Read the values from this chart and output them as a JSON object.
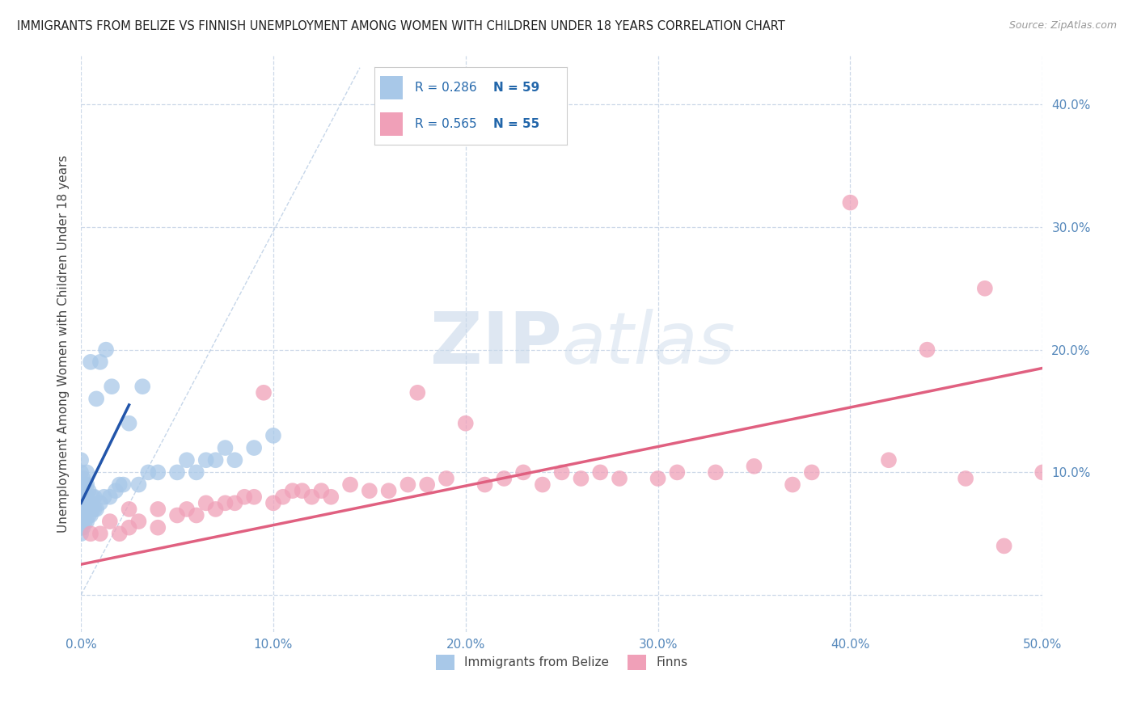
{
  "title": "IMMIGRANTS FROM BELIZE VS FINNISH UNEMPLOYMENT AMONG WOMEN WITH CHILDREN UNDER 18 YEARS CORRELATION CHART",
  "source": "Source: ZipAtlas.com",
  "ylabel": "Unemployment Among Women with Children Under 18 years",
  "xlim": [
    0.0,
    0.5
  ],
  "ylim": [
    -0.03,
    0.44
  ],
  "xticks": [
    0.0,
    0.1,
    0.2,
    0.3,
    0.4,
    0.5
  ],
  "yticks": [
    0.0,
    0.1,
    0.2,
    0.3,
    0.4
  ],
  "xtick_labels": [
    "0.0%",
    "10.0%",
    "20.0%",
    "30.0%",
    "40.0%",
    "50.0%"
  ],
  "ytick_labels": [
    "",
    "10.0%",
    "20.0%",
    "30.0%",
    "40.0%"
  ],
  "legend_label1": "Immigrants from Belize",
  "legend_label2": "Finns",
  "R1": 0.286,
  "N1": 59,
  "R2": 0.565,
  "N2": 55,
  "color_blue": "#a8c8e8",
  "color_pink": "#f0a0b8",
  "color_blue_line": "#2255aa",
  "color_pink_line": "#e06080",
  "color_diag": "#b8cce4",
  "watermark_zip": "ZIP",
  "watermark_atlas": "atlas",
  "blue_scatter_x": [
    0.0,
    0.0,
    0.0,
    0.0,
    0.0,
    0.0,
    0.0,
    0.0,
    0.0,
    0.0,
    0.001,
    0.001,
    0.001,
    0.001,
    0.001,
    0.002,
    0.002,
    0.002,
    0.002,
    0.003,
    0.003,
    0.003,
    0.003,
    0.003,
    0.004,
    0.004,
    0.004,
    0.005,
    0.005,
    0.005,
    0.006,
    0.006,
    0.007,
    0.007,
    0.008,
    0.008,
    0.01,
    0.01,
    0.012,
    0.013,
    0.015,
    0.016,
    0.018,
    0.02,
    0.022,
    0.025,
    0.03,
    0.032,
    0.035,
    0.04,
    0.05,
    0.055,
    0.06,
    0.065,
    0.07,
    0.075,
    0.08,
    0.09,
    0.1
  ],
  "blue_scatter_y": [
    0.05,
    0.055,
    0.06,
    0.065,
    0.07,
    0.075,
    0.08,
    0.09,
    0.1,
    0.11,
    0.055,
    0.065,
    0.075,
    0.085,
    0.095,
    0.06,
    0.07,
    0.08,
    0.09,
    0.06,
    0.07,
    0.08,
    0.09,
    0.1,
    0.065,
    0.075,
    0.085,
    0.065,
    0.075,
    0.19,
    0.07,
    0.08,
    0.07,
    0.08,
    0.07,
    0.16,
    0.075,
    0.19,
    0.08,
    0.2,
    0.08,
    0.17,
    0.085,
    0.09,
    0.09,
    0.14,
    0.09,
    0.17,
    0.1,
    0.1,
    0.1,
    0.11,
    0.1,
    0.11,
    0.11,
    0.12,
    0.11,
    0.12,
    0.13
  ],
  "pink_scatter_x": [
    0.005,
    0.01,
    0.015,
    0.02,
    0.025,
    0.025,
    0.03,
    0.04,
    0.04,
    0.05,
    0.055,
    0.06,
    0.065,
    0.07,
    0.075,
    0.08,
    0.085,
    0.09,
    0.095,
    0.1,
    0.105,
    0.11,
    0.115,
    0.12,
    0.125,
    0.13,
    0.14,
    0.15,
    0.16,
    0.17,
    0.175,
    0.18,
    0.19,
    0.2,
    0.21,
    0.22,
    0.23,
    0.24,
    0.25,
    0.26,
    0.27,
    0.28,
    0.3,
    0.31,
    0.33,
    0.35,
    0.37,
    0.38,
    0.4,
    0.42,
    0.44,
    0.46,
    0.47,
    0.48,
    0.5
  ],
  "pink_scatter_y": [
    0.05,
    0.05,
    0.06,
    0.05,
    0.055,
    0.07,
    0.06,
    0.055,
    0.07,
    0.065,
    0.07,
    0.065,
    0.075,
    0.07,
    0.075,
    0.075,
    0.08,
    0.08,
    0.165,
    0.075,
    0.08,
    0.085,
    0.085,
    0.08,
    0.085,
    0.08,
    0.09,
    0.085,
    0.085,
    0.09,
    0.165,
    0.09,
    0.095,
    0.14,
    0.09,
    0.095,
    0.1,
    0.09,
    0.1,
    0.095,
    0.1,
    0.095,
    0.095,
    0.1,
    0.1,
    0.105,
    0.09,
    0.1,
    0.32,
    0.11,
    0.2,
    0.095,
    0.25,
    0.04,
    0.1
  ],
  "blue_line_x0": 0.0,
  "blue_line_x1": 0.025,
  "blue_line_y0": 0.075,
  "blue_line_y1": 0.155,
  "pink_line_x0": 0.0,
  "pink_line_x1": 0.5,
  "pink_line_y0": 0.025,
  "pink_line_y1": 0.185
}
